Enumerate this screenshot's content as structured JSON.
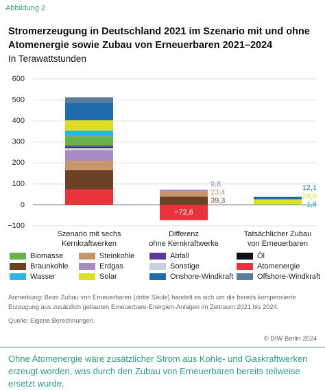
{
  "header": {
    "figure_label": "Abbildung 2"
  },
  "chart_data": {
    "type": "stacked-bar",
    "title": "Stromerzeugung in Deutschland 2021 im Szenario mit und ohne Atomenergie sowie Zubau von Erneuerbaren 2021–2024",
    "subtitle": "In Terawattstunden",
    "categories": [
      [
        "Szenario mit sechs",
        "Kernkraftwerken"
      ],
      [
        "Differenz",
        "ohne Kernkraftwerke"
      ],
      [
        "Tatsächlicher Zubau",
        "von Erneuerbaren"
      ]
    ],
    "ylim": [
      -100,
      600
    ],
    "yticks": [
      {
        "value": -100,
        "label": "−100"
      },
      0,
      100,
      200,
      300,
      400,
      500,
      600
    ],
    "grid": true,
    "series": [
      {
        "name": "Biomasse",
        "color": "#6ab04c",
        "values": [
          45,
          0,
          0
        ],
        "value_labels": [
          null,
          null,
          null
        ]
      },
      {
        "name": "Braunkohle",
        "color": "#6b4226",
        "values": [
          90,
          39.3,
          0
        ],
        "value_labels": [
          null,
          "39,3",
          null
        ]
      },
      {
        "name": "Wasser",
        "color": "#29b6e8",
        "values": [
          25,
          0,
          1.8
        ],
        "value_labels": [
          null,
          null,
          "1,8"
        ]
      },
      {
        "name": "Steinkohle",
        "color": "#c8956b",
        "values": [
          45,
          23.4,
          0
        ],
        "value_labels": [
          null,
          "23,4",
          null
        ]
      },
      {
        "name": "Erdgas",
        "color": "#a98bc4",
        "values": [
          50,
          9.8,
          0
        ],
        "value_labels": [
          null,
          "9,8",
          null
        ]
      },
      {
        "name": "Solar",
        "color": "#dede22",
        "values": [
          50,
          0,
          24.5
        ],
        "value_labels": [
          null,
          null,
          "24,5"
        ]
      },
      {
        "name": "Abfall",
        "color": "#5b3a9a",
        "values": [
          6,
          0,
          0
        ],
        "value_labels": [
          null,
          null,
          null
        ]
      },
      {
        "name": "Sonstige",
        "color": "#c5d3e0",
        "values": [
          12,
          0,
          0
        ],
        "value_labels": [
          null,
          null,
          null
        ]
      },
      {
        "name": "Onshore-Windkraft",
        "color": "#1f6bab",
        "values": [
          85,
          0,
          12.1
        ],
        "value_labels": [
          null,
          null,
          "12,1"
        ]
      },
      {
        "name": "Öl",
        "color": "#111111",
        "values": [
          5,
          0,
          0
        ],
        "value_labels": [
          null,
          null,
          null
        ]
      },
      {
        "name": "Atomenergie",
        "color": "#e8333c",
        "values": [
          75,
          -72.6,
          0
        ],
        "value_labels": [
          null,
          "−72,6",
          null
        ]
      },
      {
        "name": "Offshore-Windkraft",
        "color": "#5b7d99",
        "values": [
          25,
          0,
          0
        ],
        "value_labels": [
          null,
          null,
          null
        ]
      }
    ]
  },
  "footer": {
    "note": "Anmerkung: Beim Zubau von Erneuerbaren (dritte Säule) handelt es sich um die bereits kompensierte Erzeugung aus zusätzlich gebauten Erneuerbare-Energien-Anlagen im Zeitraum 2021 bis 2024.",
    "source": "Quelle: Eigene Berechnungen.",
    "copyright": "© DIW Berlin 2024",
    "caption": "Ohne Atomenergie wäre zusätzlicher Strom aus Kohle- und Gaskraftwerken erzeugt worden, was durch den Zubau von Erneuerbaren bereits teilweise ersetzt wurde."
  }
}
